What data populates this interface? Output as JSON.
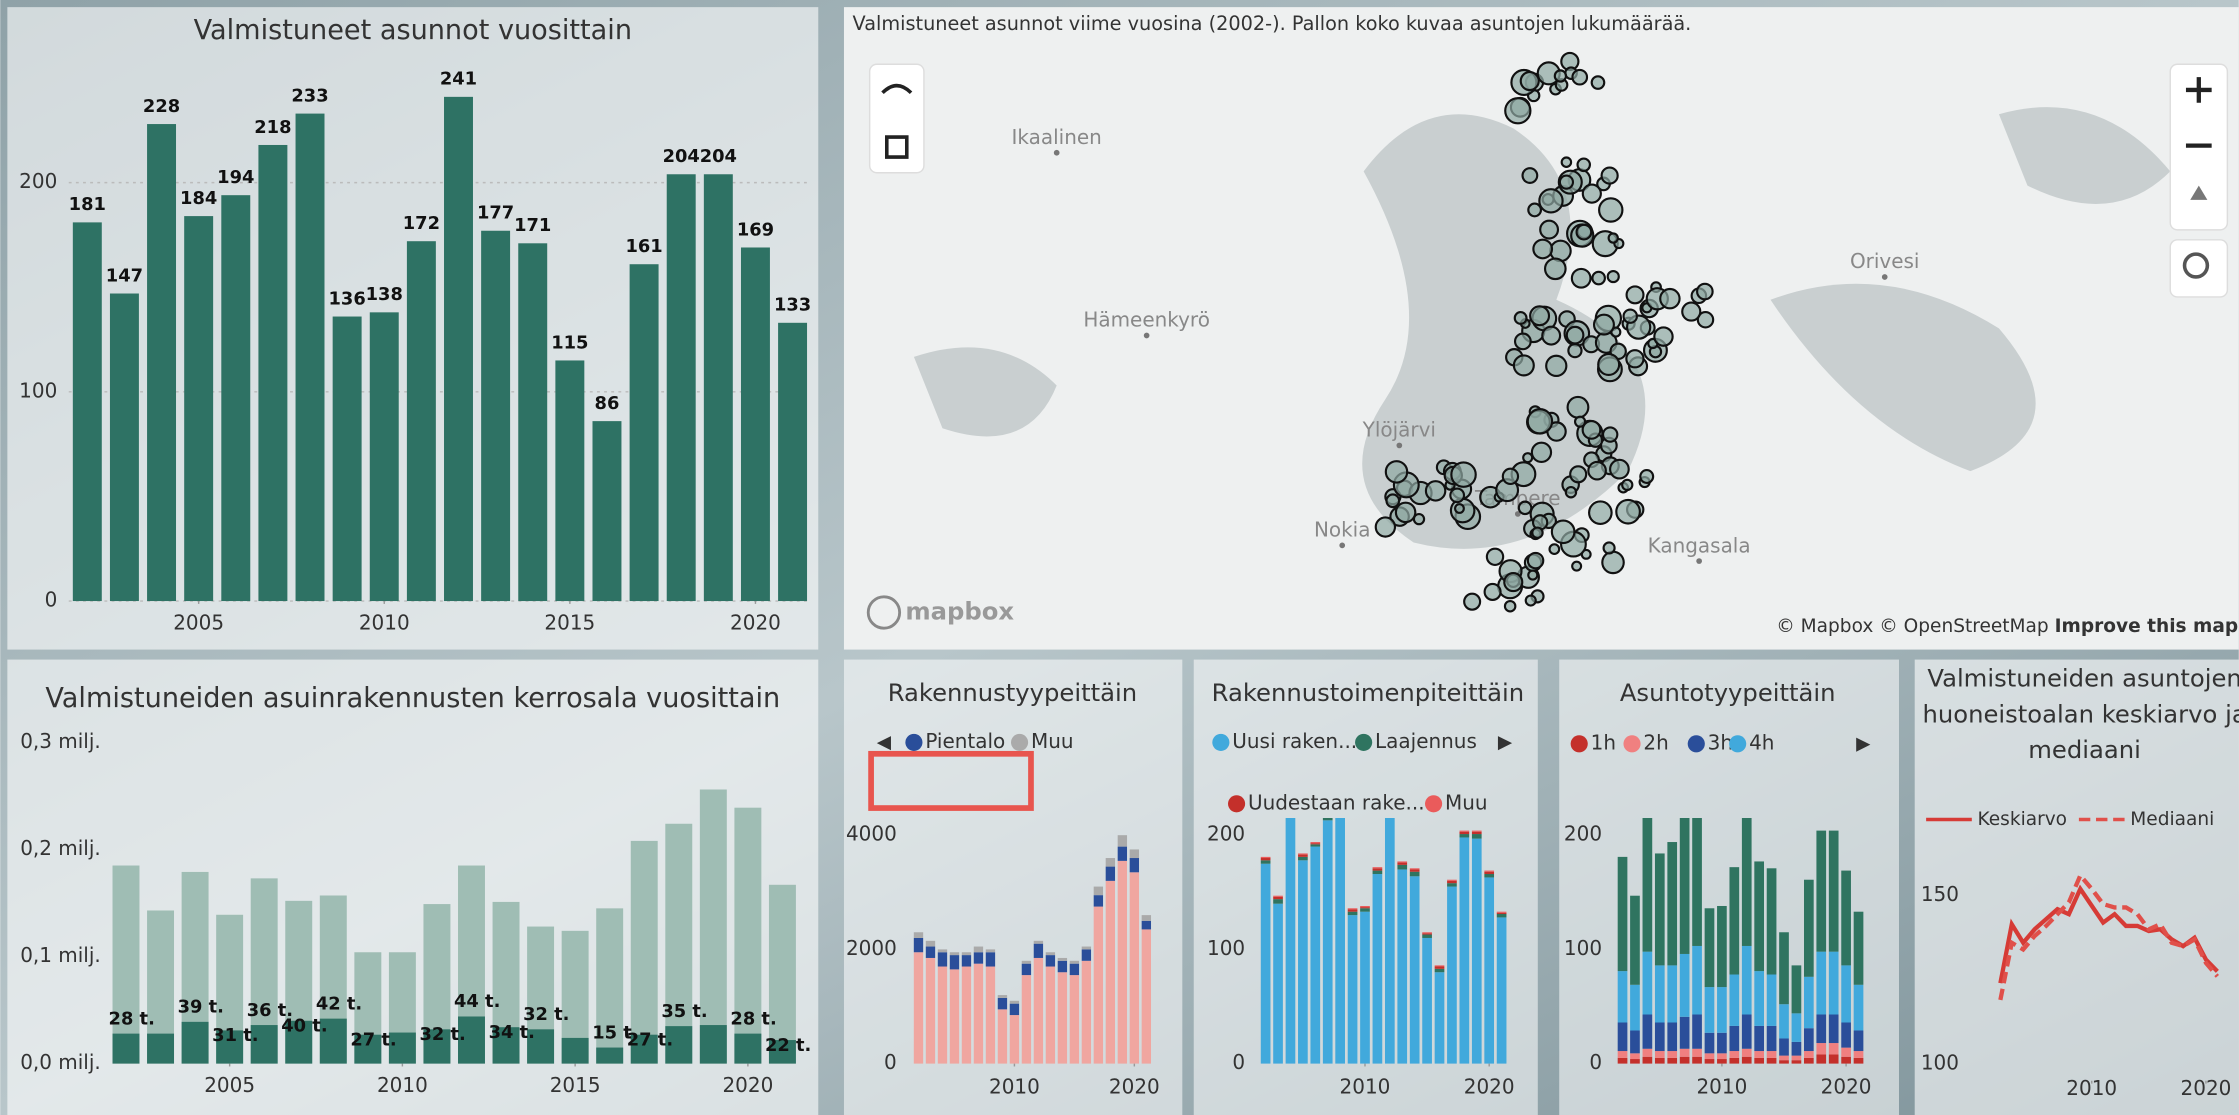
{
  "map": {
    "title": "Valmistuneet asunnot viime vuosina (2002-).  Pallon koko kuvaa asuntojen lukumäärää.",
    "places": [
      "Ikaalinen",
      "Hämeenkyrö",
      "Ylöjärvi",
      "Nokia",
      "Tampere",
      "Kangasala",
      "Orivesi"
    ],
    "logo": "mapbox",
    "attribution": "© Mapbox © OpenStreetMap",
    "improve": "Improve this map"
  },
  "chart_data": [
    {
      "type": "bar",
      "title": "Valmistuneet asunnot vuosittain",
      "color": "#2e7264",
      "grid": true,
      "x": [
        2002,
        2003,
        2004,
        2005,
        2006,
        2007,
        2008,
        2009,
        2010,
        2011,
        2012,
        2013,
        2014,
        2015,
        2016,
        2017,
        2018,
        2019,
        2020,
        2021
      ],
      "values": [
        181,
        147,
        228,
        184,
        194,
        218,
        233,
        136,
        138,
        172,
        241,
        177,
        171,
        115,
        86,
        161,
        204,
        204,
        169,
        133
      ],
      "xlim": [
        2001.5,
        2021.5
      ],
      "xticks": [
        2005,
        2010,
        2015,
        2020
      ],
      "ylim": [
        0,
        260
      ],
      "yticks": [
        0,
        100,
        200
      ]
    },
    {
      "type": "bar",
      "title": "Valmistuneiden asuinrakennusten kerrosala vuosittain",
      "x": [
        2002,
        2003,
        2004,
        2005,
        2006,
        2007,
        2008,
        2009,
        2010,
        2011,
        2012,
        2013,
        2014,
        2015,
        2016,
        2017,
        2018,
        2019,
        2020,
        2021
      ],
      "series": [
        {
          "color": "#9fbdb4",
          "values": [
            185000,
            143000,
            179000,
            139000,
            173000,
            152000,
            157000,
            104000,
            104000,
            149000,
            185000,
            151000,
            128000,
            124000,
            145000,
            208000,
            224000,
            256000,
            239000,
            167000
          ]
        },
        {
          "color": "#2e7264",
          "values": [
            28000,
            28000,
            39000,
            31000,
            36000,
            40000,
            42000,
            27000,
            29000,
            32000,
            44000,
            34000,
            32000,
            24000,
            15000,
            27000,
            35000,
            36000,
            28000,
            22000
          ],
          "value_labels": [
            "28 t.",
            null,
            "39 t.",
            "31 t.",
            "36 t.",
            "40 t.",
            "42 t.",
            "27 t.",
            null,
            "32 t.",
            "44 t.",
            "34 t.",
            "32 t.",
            null,
            "15 t.",
            "27 t.",
            "35 t.",
            null,
            "28 t.",
            "22 t."
          ]
        }
      ],
      "xlim": [
        2001.5,
        2021.5
      ],
      "xticks": [
        2005,
        2010,
        2015,
        2020
      ],
      "ylim": [
        0,
        300000
      ],
      "yticks": [
        {
          "value": 0,
          "label": "0,0 milj."
        },
        {
          "value": 100000,
          "label": "0,1 milj."
        },
        {
          "value": 200000,
          "label": "0,2 milj."
        },
        {
          "value": 300000,
          "label": "0,3 milj."
        }
      ]
    },
    {
      "type": "stacked_bar",
      "title": "Rakennustyypeittäin",
      "x": [
        2002,
        2003,
        2004,
        2005,
        2006,
        2007,
        2008,
        2009,
        2010,
        2011,
        2012,
        2013,
        2014,
        2015,
        2016,
        2017,
        2018,
        2019,
        2020,
        2021
      ],
      "series": [
        {
          "color": "#f0a6a0",
          "values": [
            1950,
            1850,
            1700,
            1650,
            1700,
            1750,
            1700,
            950,
            850,
            1550,
            1850,
            1700,
            1600,
            1550,
            1800,
            2750,
            3200,
            3550,
            3350,
            2350
          ]
        },
        {
          "name": "Pientalo",
          "color": "#2a4e9a",
          "values": [
            250,
            200,
            250,
            250,
            200,
            200,
            250,
            200,
            200,
            200,
            250,
            200,
            200,
            200,
            200,
            200,
            250,
            250,
            250,
            150
          ]
        },
        {
          "name": "Muu",
          "color": "#aaaaaa",
          "values": [
            100,
            100,
            50,
            50,
            50,
            100,
            50,
            50,
            50,
            50,
            50,
            50,
            50,
            50,
            50,
            150,
            150,
            200,
            150,
            100
          ]
        }
      ],
      "xlim": [
        2001.5,
        2021.5
      ],
      "xticks": [
        2010,
        2020
      ],
      "ylim": [
        0,
        4300
      ],
      "yticks": [
        0,
        2000,
        4000
      ]
    },
    {
      "type": "stacked_bar",
      "title": "Rakennustoimenpiteittäin",
      "x": [
        2002,
        2003,
        2004,
        2005,
        2006,
        2007,
        2008,
        2009,
        2010,
        2011,
        2012,
        2013,
        2014,
        2015,
        2016,
        2017,
        2018,
        2019,
        2020,
        2021
      ],
      "series": [
        {
          "name": "Uusi raken...",
          "color": "#41a9dc",
          "values": [
            175,
            140,
            220,
            178,
            190,
            213,
            228,
            130,
            133,
            166,
            236,
            170,
            164,
            110,
            80,
            155,
            198,
            197,
            163,
            128
          ]
        },
        {
          "name": "Laajennus",
          "color": "#2f7460",
          "values": [
            3,
            4,
            4,
            3,
            2,
            3,
            3,
            3,
            3,
            3,
            3,
            4,
            4,
            3,
            3,
            3,
            3,
            4,
            3,
            3
          ]
        },
        {
          "name": "Uudestaan rake...",
          "color": "#c4302b",
          "values": [
            2,
            2,
            2,
            2,
            1,
            1,
            1,
            2,
            1,
            2,
            1,
            2,
            2,
            1,
            2,
            2,
            2,
            2,
            2,
            1
          ]
        },
        {
          "name": "Muu",
          "color": "#ea5b5b",
          "values": [
            1,
            1,
            2,
            1,
            1,
            1,
            1,
            1,
            1,
            1,
            1,
            1,
            1,
            1,
            1,
            1,
            1,
            1,
            1,
            1
          ]
        }
      ],
      "xlim": [
        2001.5,
        2021.5
      ],
      "xticks": [
        2010,
        2020
      ],
      "ylim": [
        0,
        215
      ],
      "yticks": [
        0,
        100,
        200
      ]
    },
    {
      "type": "stacked_bar",
      "title": "Asuntotyypeittäin",
      "x": [
        2002,
        2003,
        2004,
        2005,
        2006,
        2007,
        2008,
        2009,
        2010,
        2011,
        2012,
        2013,
        2014,
        2015,
        2016,
        2017,
        2018,
        2019,
        2020,
        2021
      ],
      "series": [
        {
          "name": "1h",
          "color": "#c4302b",
          "values": [
            5,
            4,
            6,
            5,
            5,
            6,
            6,
            4,
            4,
            5,
            6,
            5,
            5,
            3,
            3,
            5,
            8,
            8,
            6,
            5
          ]
        },
        {
          "name": "2h",
          "color": "#f08080",
          "values": [
            6,
            5,
            7,
            6,
            6,
            7,
            7,
            5,
            5,
            6,
            7,
            6,
            6,
            4,
            4,
            6,
            10,
            10,
            8,
            6
          ]
        },
        {
          "name": "3h",
          "color": "#2a4e9a",
          "values": [
            25,
            20,
            30,
            25,
            25,
            28,
            30,
            18,
            18,
            22,
            30,
            22,
            22,
            15,
            12,
            20,
            25,
            25,
            22,
            18
          ]
        },
        {
          "name": "4h",
          "color": "#41a9dc",
          "values": [
            45,
            40,
            55,
            50,
            50,
            55,
            60,
            40,
            40,
            45,
            60,
            48,
            45,
            30,
            25,
            45,
            55,
            55,
            50,
            40
          ]
        },
        {
          "color": "#2f7460",
          "values": [
            100,
            78,
            130,
            98,
            108,
            122,
            130,
            69,
            71,
            94,
            138,
            96,
            93,
            63,
            42,
            85,
            106,
            106,
            83,
            64
          ]
        }
      ],
      "xlim": [
        2001.5,
        2021.5
      ],
      "xticks": [
        2010,
        2020
      ],
      "ylim": [
        0,
        215
      ],
      "yticks": [
        0,
        100,
        200
      ]
    },
    {
      "type": "line",
      "title": "Valmistuneiden asuntojen huoneistoalan keskiarvo ja mediaani",
      "x": [
        2002,
        2003,
        2004,
        2005,
        2006,
        2007,
        2008,
        2009,
        2010,
        2011,
        2012,
        2013,
        2014,
        2015,
        2016,
        2017,
        2018,
        2019,
        2020,
        2021
      ],
      "series": [
        {
          "name": "Keskiarvo",
          "color": "#d63b36",
          "line_style": "solid",
          "values": [
            124,
            141.5,
            136,
            140,
            143,
            146,
            144.5,
            152,
            147,
            142,
            144.5,
            141,
            141,
            139.5,
            140,
            137,
            135,
            137.5,
            131,
            127.5
          ]
        },
        {
          "name": "Mediaani",
          "color": "#e0504a",
          "line_style": "dashed",
          "values": [
            119,
            136,
            134,
            138,
            141,
            144.5,
            148,
            156,
            152,
            147.5,
            146.5,
            146.5,
            144.5,
            140,
            141.5,
            136,
            135,
            137,
            130,
            126
          ]
        }
      ],
      "xlim": [
        2001.5,
        2021.5
      ],
      "xticks": [
        2010,
        2020
      ],
      "ylim": [
        95,
        165
      ],
      "yticks": [
        100,
        150
      ]
    }
  ]
}
